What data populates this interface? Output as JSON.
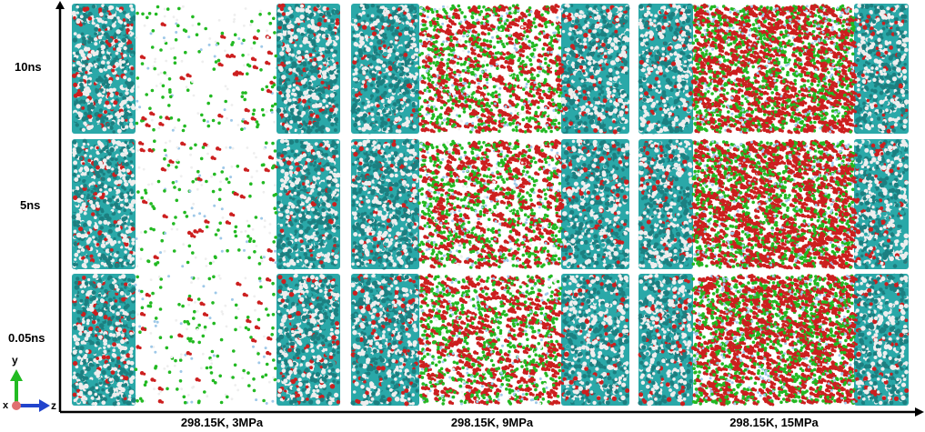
{
  "row_labels": [
    "10ns",
    "5ns",
    "0.05ns"
  ],
  "column_labels": [
    "298.15K, 3MPa",
    "298.15K, 9MPa",
    "298.15K, 15MPa"
  ],
  "orientation_axes": {
    "vertical": "y",
    "out_of_plane": "x",
    "horizontal": "z"
  },
  "colors": {
    "slab_cyan": "#2aa8a8",
    "slab_dark": "#1c7f80",
    "hydrogen_white": "#eeeeee",
    "oxygen_red": "#cc1f1f",
    "gas_green": "#22b922",
    "light_blue": "#9ec8e8",
    "axis_y": "#22bb22",
    "axis_z": "#2244cc",
    "axis_x": "#e07070"
  }
}
